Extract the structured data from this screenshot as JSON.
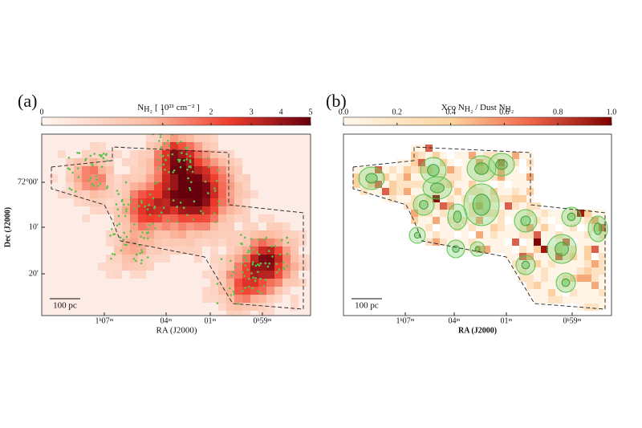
{
  "panels": [
    {
      "label": "(a)",
      "colorbar": {
        "symbol": "N",
        "subscript": "H₂",
        "unit": "[ 10²¹ cm⁻² ]",
        "ticks": [
          "0",
          "1",
          "2",
          "3",
          "4",
          "5"
        ]
      },
      "y_axis": {
        "title": "Dec (J2000)",
        "ticks": [
          "72°00′",
          "10′",
          "20′"
        ]
      },
      "x_axis": {
        "title": "RA (J2000)",
        "ticks": [
          "1ʰ07ᵐ",
          "04ᵐ",
          "01ᵐ",
          "0ʰ59ᵐ"
        ]
      },
      "scale_bar": "100 pc"
    },
    {
      "label": "(b)",
      "colorbar": {
        "symbol": "Xco N",
        "subscript": "H₂",
        "middle": " / Dust N",
        "subscript2": "H₂",
        "ticks": [
          "0.0",
          "0.2",
          "0.4",
          "0.6",
          "0.8",
          "1.0"
        ]
      },
      "x_axis": {
        "title": "RA (J2000)",
        "ticks": [
          "1ʰ07ᵐ",
          "04ᵐ",
          "01ᵐ",
          "0ʰ59ᵐ"
        ]
      },
      "scale_bar": "100 pc"
    }
  ]
}
